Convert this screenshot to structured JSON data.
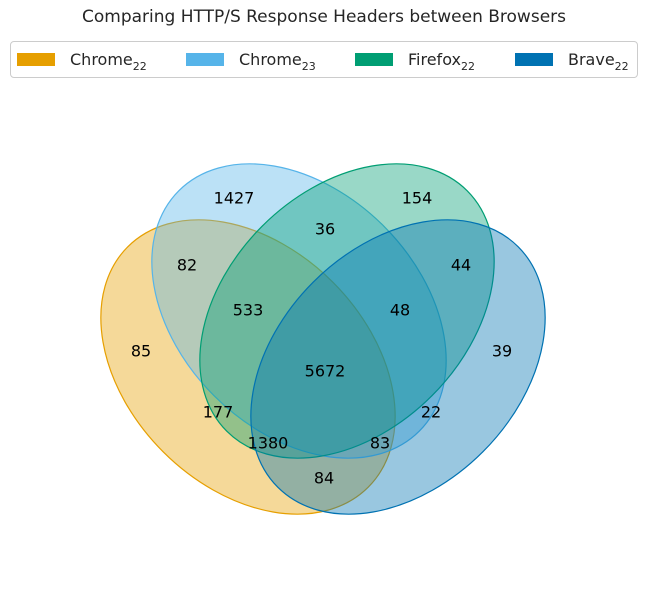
{
  "title": "Comparing HTTP/S Response Headers between Browsers",
  "legend": [
    {
      "base": "Chrome",
      "sub": "22",
      "color": "#E69F00"
    },
    {
      "base": "Chrome",
      "sub": "23",
      "color": "#56B4E9"
    },
    {
      "base": "Firefox",
      "sub": "22",
      "color": "#009E73"
    },
    {
      "base": "Brave",
      "sub": "22",
      "color": "#0072B2"
    }
  ],
  "regions": {
    "chrome23_only": "1427",
    "firefox22_only": "154",
    "chrome22_only": "85",
    "brave22_only": "39",
    "chrome22_chrome23": "82",
    "chrome23_firefox22": "36",
    "firefox22_brave22": "44",
    "chrome22_chrome23_firefox22": "533",
    "chrome23_firefox22_brave22": "48",
    "all_four": "5672",
    "chrome22_firefox22": "177",
    "chrome23_brave22": "22",
    "chrome22_chrome23_brave22": "1380",
    "chrome22_firefox22_brave22": "83",
    "chrome22_brave22": "84"
  }
}
